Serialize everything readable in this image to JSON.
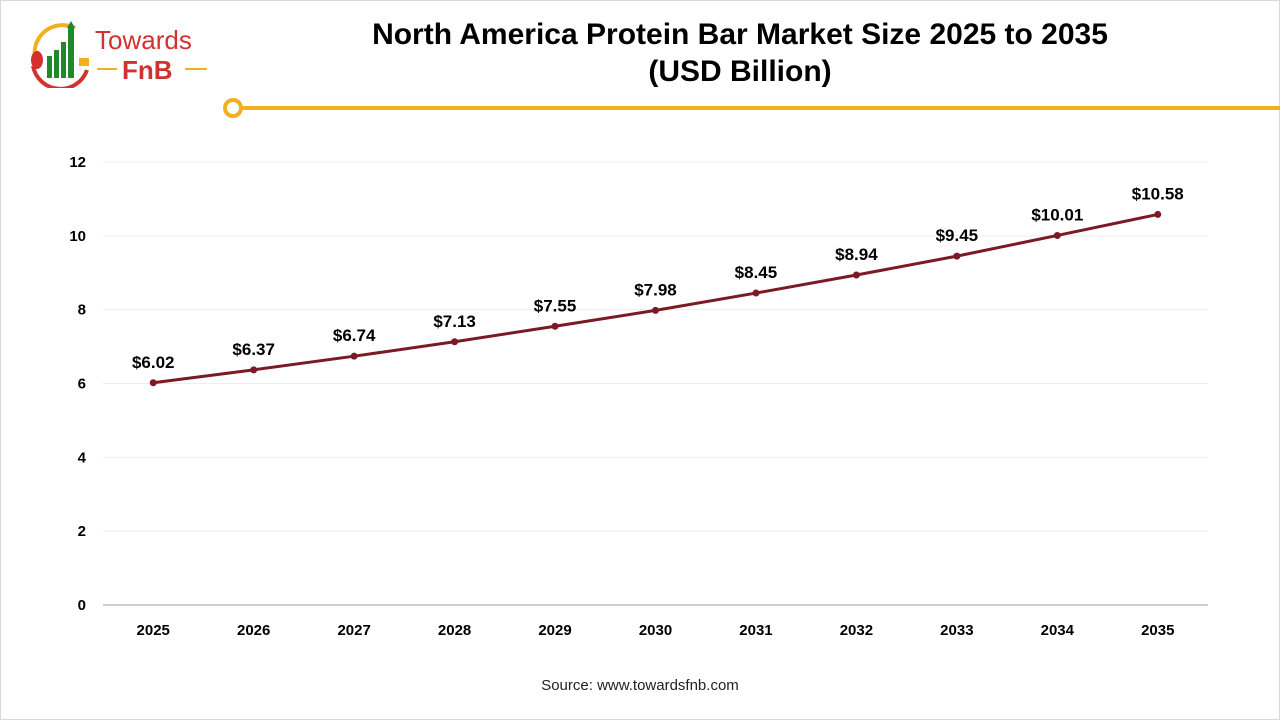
{
  "brand": {
    "logo_text_1": "Towards",
    "logo_text_2": "FnB"
  },
  "colors": {
    "line": "#7b1a25",
    "accent": "#f2b01e",
    "grid": "#eeeeee",
    "logo_red": "#d2322d",
    "logo_green": "#1f8a2b"
  },
  "source": "Source: www.towardsfnb.com",
  "chart_data": {
    "type": "line",
    "title": "North America Protein Bar Market Size 2025 to 2035",
    "subtitle": "(USD Billion)",
    "categories": [
      "2025",
      "2026",
      "2027",
      "2028",
      "2029",
      "2030",
      "2031",
      "2032",
      "2033",
      "2034",
      "2035"
    ],
    "values": [
      6.02,
      6.37,
      6.74,
      7.13,
      7.55,
      7.98,
      8.45,
      8.94,
      9.45,
      10.01,
      10.58
    ],
    "data_labels": [
      "$6.02",
      "$6.37",
      "$6.74",
      "$7.13",
      "$7.55",
      "$7.98",
      "$8.45",
      "$8.94",
      "$9.45",
      "$10.01",
      "$10.58"
    ],
    "yticks": [
      0,
      2,
      4,
      6,
      8,
      10,
      12
    ],
    "ylim": [
      0,
      12
    ],
    "grid": true,
    "legend": "none"
  }
}
